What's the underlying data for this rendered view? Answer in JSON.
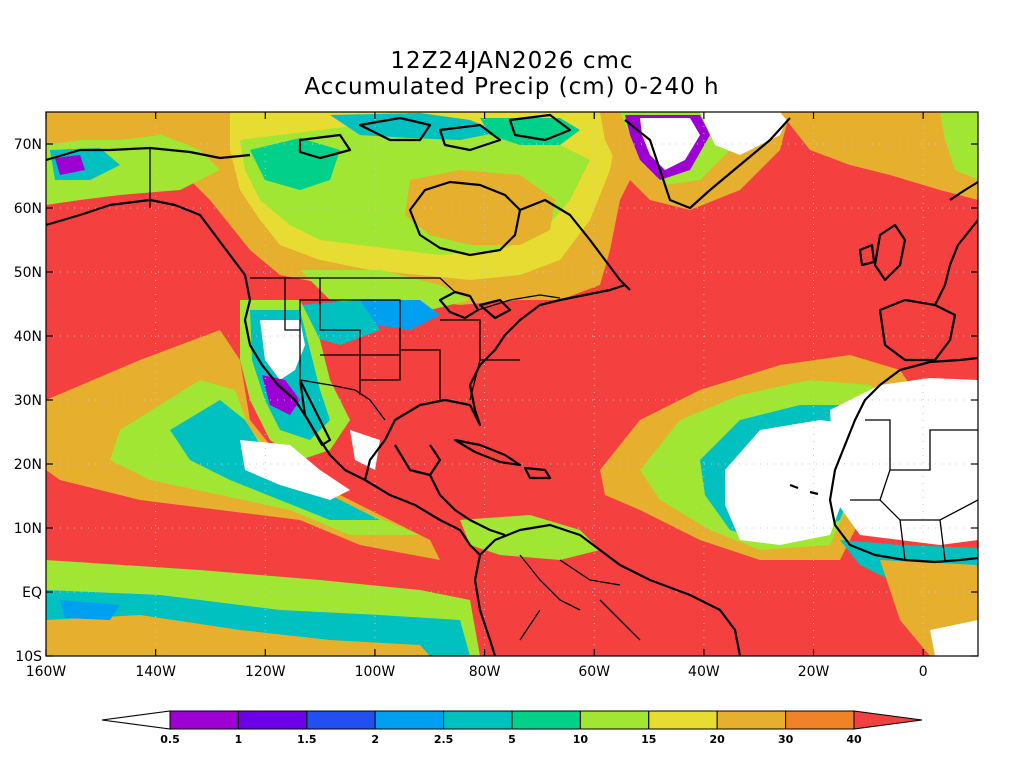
{
  "title_line1": "12Z24JAN2026 cmc",
  "title_line2": "Accumulated Precip (cm) 0-240 h",
  "lat_labels": [
    "70N",
    "60N",
    "50N",
    "40N",
    "30N",
    "20N",
    "10N",
    "EQ",
    "10S"
  ],
  "lat_values": [
    70,
    60,
    50,
    40,
    30,
    20,
    10,
    0,
    -10
  ],
  "lon_labels": [
    "160W",
    "140W",
    "120W",
    "100W",
    "80W",
    "60W",
    "40W",
    "20W",
    "0"
  ],
  "lon_values": [
    -160,
    -140,
    -120,
    -100,
    -80,
    -60,
    -40,
    -20,
    0
  ],
  "map_extent": {
    "lon_min": -160,
    "lon_max": 10,
    "lat_min": -10,
    "lat_max": 75
  },
  "colorbar": {
    "labels": [
      "0.5",
      "1",
      "1.5",
      "2",
      "2.5",
      "5",
      "10",
      "15",
      "20",
      "30",
      "40"
    ],
    "colors": [
      "#ffffff",
      "#9c00d2",
      "#6e00e8",
      "#2250f0",
      "#00a0f0",
      "#00c0c0",
      "#00d08a",
      "#a0e632",
      "#e6dc32",
      "#e6af2d",
      "#f08228",
      "#f04040"
    ]
  },
  "field_colors": {
    "heavy": "#f54040",
    "orange": "#f08228",
    "gold": "#e6af2d",
    "yellow": "#e6dc32",
    "lime": "#a0e632",
    "green": "#00d08a",
    "teal": "#00c0c0",
    "blue": "#00a0f0",
    "purple": "#9c00d2",
    "dry": "#ffffff"
  }
}
